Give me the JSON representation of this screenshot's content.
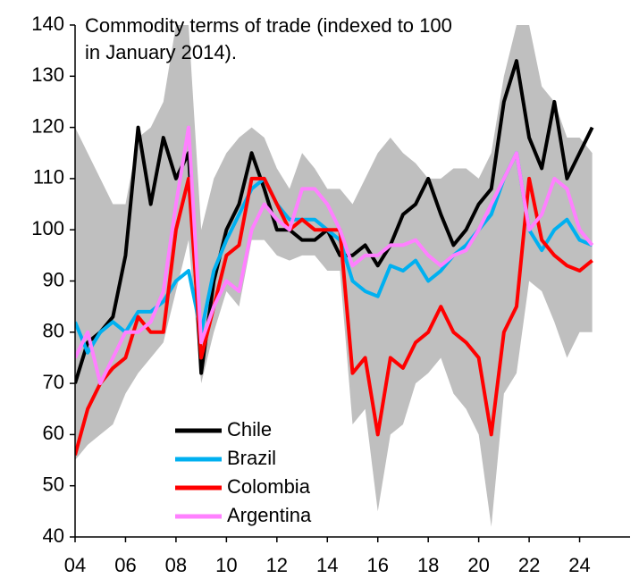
{
  "chart_data": {
    "type": "line",
    "title": [
      "Commodity terms of trade (indexed to 100",
      "in January 2014)."
    ],
    "x": [
      2004,
      2004.5,
      2005,
      2005.5,
      2006,
      2006.5,
      2007,
      2007.5,
      2008,
      2008.5,
      2009,
      2009.5,
      2010,
      2010.5,
      2011,
      2011.5,
      2012,
      2012.5,
      2013,
      2013.5,
      2014,
      2014.5,
      2015,
      2015.5,
      2016,
      2016.5,
      2017,
      2017.5,
      2018,
      2018.5,
      2019,
      2019.5,
      2020,
      2020.5,
      2021,
      2021.5,
      2022,
      2022.5,
      2023,
      2023.5,
      2024,
      2024.5
    ],
    "range": {
      "color": "#bfbfbf",
      "upper": [
        120,
        115,
        110,
        105,
        105,
        118,
        120,
        125,
        140,
        140,
        100,
        110,
        115,
        118,
        120,
        118,
        112,
        108,
        115,
        112,
        108,
        108,
        105,
        110,
        115,
        118,
        115,
        113,
        110,
        110,
        112,
        112,
        110,
        115,
        130,
        140,
        140,
        128,
        125,
        118,
        118,
        115
      ],
      "lower": [
        55,
        58,
        60,
        62,
        68,
        72,
        75,
        78,
        88,
        98,
        70,
        80,
        88,
        85,
        98,
        98,
        95,
        94,
        95,
        95,
        92,
        92,
        62,
        65,
        45,
        60,
        62,
        70,
        72,
        75,
        68,
        65,
        60,
        42,
        68,
        72,
        90,
        88,
        82,
        75,
        80,
        80
      ]
    },
    "series": [
      {
        "name": "Chile",
        "color": "#000000",
        "values": [
          70,
          78,
          80,
          83,
          95,
          120,
          105,
          118,
          110,
          115,
          72,
          90,
          100,
          105,
          115,
          108,
          100,
          100,
          98,
          98,
          100,
          95,
          95,
          97,
          93,
          97,
          103,
          105,
          110,
          103,
          97,
          100,
          105,
          108,
          125,
          133,
          118,
          112,
          125,
          110,
          115,
          120
        ]
      },
      {
        "name": "Brazil",
        "color": "#00b0f0",
        "values": [
          82,
          76,
          80,
          82,
          80,
          84,
          84,
          86,
          90,
          92,
          80,
          92,
          98,
          103,
          108,
          110,
          105,
          102,
          102,
          102,
          100,
          98,
          90,
          88,
          87,
          93,
          92,
          94,
          90,
          92,
          95,
          97,
          100,
          103,
          110,
          115,
          100,
          96,
          100,
          102,
          98,
          97
        ]
      },
      {
        "name": "Colombia",
        "color": "#ff0000",
        "values": [
          56,
          65,
          70,
          73,
          75,
          83,
          80,
          80,
          100,
          110,
          75,
          85,
          95,
          97,
          110,
          110,
          105,
          100,
          102,
          100,
          100,
          100,
          72,
          75,
          60,
          75,
          73,
          78,
          80,
          85,
          80,
          78,
          75,
          60,
          80,
          85,
          110,
          98,
          95,
          93,
          92,
          94
        ]
      },
      {
        "name": "Argentina",
        "color": "#ff80ff",
        "values": [
          75,
          80,
          70,
          75,
          80,
          80,
          82,
          88,
          105,
          120,
          78,
          85,
          90,
          88,
          100,
          105,
          102,
          100,
          108,
          108,
          105,
          100,
          93,
          95,
          95,
          97,
          97,
          98,
          95,
          93,
          95,
          96,
          100,
          105,
          110,
          115,
          100,
          103,
          110,
          108,
          100,
          97
        ]
      }
    ],
    "xlim": [
      2004,
      2026
    ],
    "xticks": [
      {
        "value": 2004,
        "label": "04"
      },
      {
        "value": 2006,
        "label": "06"
      },
      {
        "value": 2008,
        "label": "08"
      },
      {
        "value": 2010,
        "label": "10"
      },
      {
        "value": 2012,
        "label": "12"
      },
      {
        "value": 2014,
        "label": "14"
      },
      {
        "value": 2016,
        "label": "16"
      },
      {
        "value": 2018,
        "label": "18"
      },
      {
        "value": 2020,
        "label": "20"
      },
      {
        "value": 2022,
        "label": "22"
      },
      {
        "value": 2024,
        "label": "24"
      }
    ],
    "ylim": [
      40,
      140
    ],
    "yticks": [
      40,
      50,
      60,
      70,
      80,
      90,
      100,
      110,
      120,
      130,
      140
    ],
    "legend_position": "lower-left",
    "grid": false
  }
}
